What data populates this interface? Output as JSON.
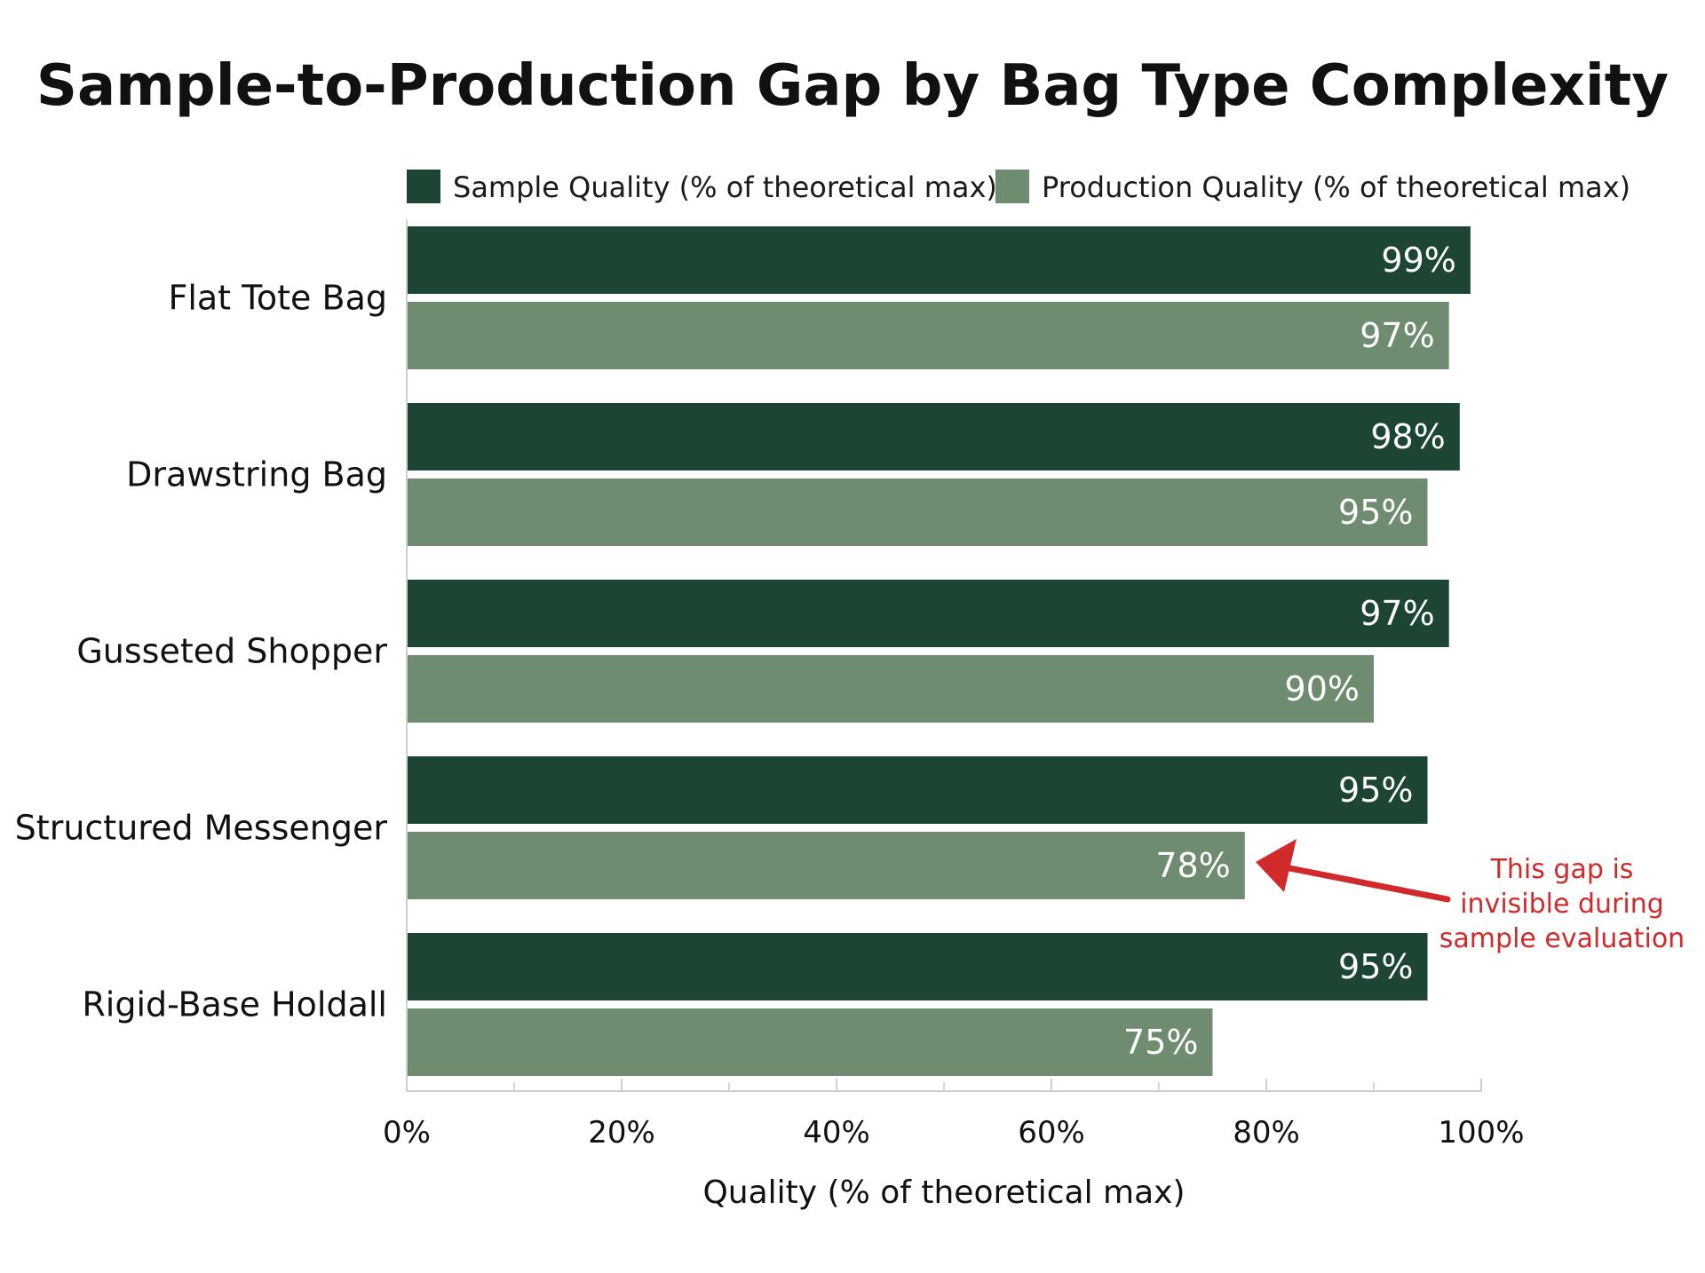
{
  "chart_data": {
    "type": "bar",
    "orientation": "horizontal",
    "title": "Sample-to-Production Gap by Bag Type Complexity",
    "xlabel": "Quality (% of theoretical max)",
    "ylabel": "",
    "xlim": [
      0,
      100
    ],
    "x_ticks": [
      "0%",
      "20%",
      "40%",
      "60%",
      "80%",
      "100%"
    ],
    "x_tick_values": [
      0,
      20,
      40,
      60,
      80,
      100
    ],
    "x_minor_tick_values": [
      10,
      30,
      50,
      70,
      90
    ],
    "grid": false,
    "legend_position": "top",
    "categories": [
      "Flat Tote Bag",
      "Drawstring Bag",
      "Gusseted Shopper",
      "Structured Messenger",
      "Rigid-Base Holdall"
    ],
    "series": [
      {
        "name": "Sample Quality (% of theoretical max)",
        "color": "#1d4534",
        "values": [
          99,
          98,
          97,
          95,
          95
        ],
        "labels": [
          "99%",
          "98%",
          "97%",
          "95%",
          "95%"
        ]
      },
      {
        "name": "Production Quality (% of theoretical max)",
        "color": "#6f8c70",
        "values": [
          97,
          95,
          90,
          78,
          75
        ],
        "labels": [
          "97%",
          "95%",
          "90%",
          "78%",
          "75%"
        ]
      }
    ],
    "annotation": {
      "lines": [
        "This gap is",
        "invisible during",
        "sample evaluation"
      ],
      "color": "#d02a2a",
      "target_category": "Structured Messenger",
      "target_series": "Production Quality (% of theoretical max)"
    }
  }
}
